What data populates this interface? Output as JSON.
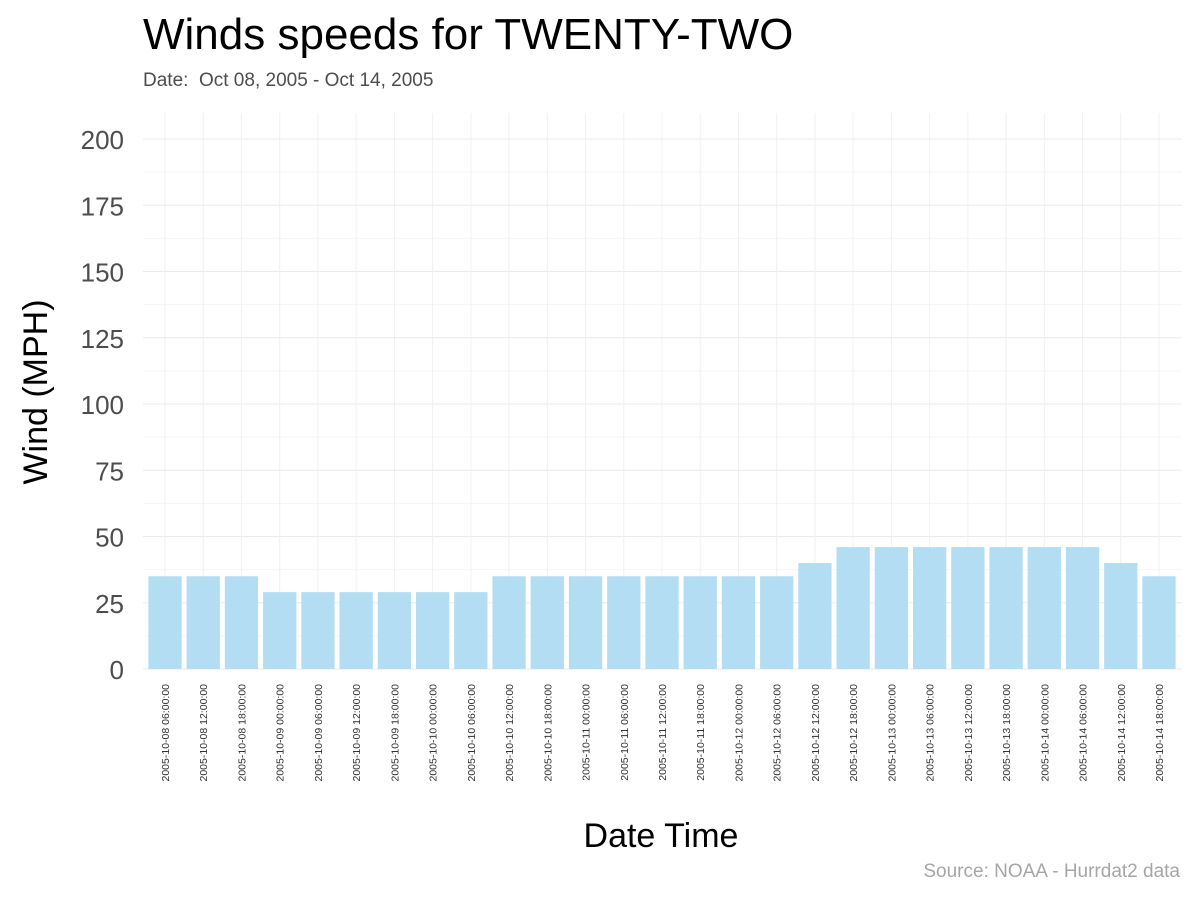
{
  "title": "Winds speeds for TWENTY-TWO",
  "subtitle": "Date:  Oct 08, 2005 - Oct 14, 2005",
  "caption": "Source: NOAA - Hurrdat2 data",
  "colors": {
    "bar": "#b3ddf2",
    "grid": "#ebebeb",
    "axis_text": "#4d4d4d",
    "title": "#000000",
    "caption": "#a6a6a6"
  },
  "chart_data": {
    "type": "bar",
    "title": "Winds speeds for TWENTY-TWO",
    "subtitle": "Date:  Oct 08, 2005 - Oct 14, 2005",
    "xlabel": "Date Time",
    "ylabel": "Wind (MPH)",
    "ylim": [
      0,
      200
    ],
    "yticks": [
      0,
      25,
      50,
      75,
      100,
      125,
      150,
      175,
      200
    ],
    "grid": true,
    "legend": "none",
    "categories": [
      "2005-10-08 06:00:00",
      "2005-10-08 12:00:00",
      "2005-10-08 18:00:00",
      "2005-10-09 00:00:00",
      "2005-10-09 06:00:00",
      "2005-10-09 12:00:00",
      "2005-10-09 18:00:00",
      "2005-10-10 00:00:00",
      "2005-10-10 06:00:00",
      "2005-10-10 12:00:00",
      "2005-10-10 18:00:00",
      "2005-10-11 00:00:00",
      "2005-10-11 06:00:00",
      "2005-10-11 12:00:00",
      "2005-10-11 18:00:00",
      "2005-10-12 00:00:00",
      "2005-10-12 06:00:00",
      "2005-10-12 12:00:00",
      "2005-10-12 18:00:00",
      "2005-10-13 00:00:00",
      "2005-10-13 06:00:00",
      "2005-10-13 12:00:00",
      "2005-10-13 18:00:00",
      "2005-10-14 00:00:00",
      "2005-10-14 06:00:00",
      "2005-10-14 12:00:00",
      "2005-10-14 18:00:00"
    ],
    "values": [
      35,
      35,
      35,
      29,
      29,
      29,
      29,
      29,
      29,
      35,
      35,
      35,
      35,
      35,
      35,
      35,
      35,
      40,
      46,
      46,
      46,
      46,
      46,
      46,
      46,
      40,
      35
    ]
  }
}
